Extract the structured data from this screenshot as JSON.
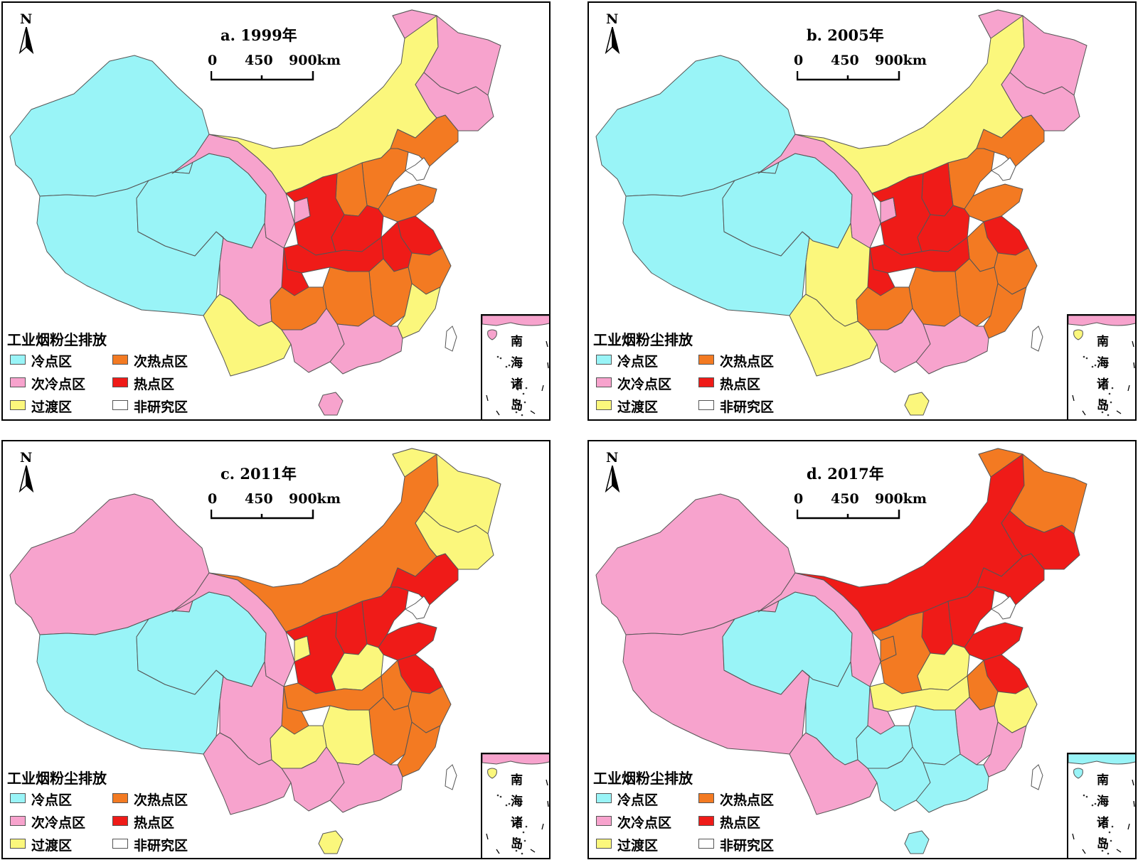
{
  "legend": {
    "title": "工业烟粉尘排放",
    "categories": [
      {
        "label": "冷点区",
        "color": "#99f4f7"
      },
      {
        "label": "次热点区",
        "color": "#f37a22"
      },
      {
        "label": "次冷点区",
        "color": "#f7a3cd"
      },
      {
        "label": "热点区",
        "color": "#ef1b18"
      },
      {
        "label": "过渡区",
        "color": "#fbf77c"
      },
      {
        "label": "非研究区",
        "color": "#ffffff"
      }
    ]
  },
  "north_label": "N",
  "scale": {
    "ticks": [
      "0",
      "450",
      "900km"
    ]
  },
  "inset_label": [
    "南",
    "海",
    "诸",
    "岛"
  ],
  "panels": [
    {
      "title": "a. 1999年",
      "regions": {
        "xinjiang": "冷点区",
        "tibet": "冷点区",
        "qinghai": "冷点区",
        "gansu": "次冷点区",
        "sichuan": "次冷点区",
        "heilongjiang": "次冷点区",
        "jilin": "次冷点区",
        "guangxi": "次冷点区",
        "guangdong": "次冷点区",
        "hainan": "次冷点区",
        "ningxia": "次冷点区",
        "inner_mongolia": "过渡区",
        "yunnan": "过渡区",
        "fujian": "过渡区",
        "liaoning": "次热点区",
        "beijing_tianjin_hebei": "次热点区",
        "shandong": "次热点区",
        "hunan": "次热点区",
        "jiangxi": "次热点区",
        "guizhou": "次热点区",
        "zhejiang": "次热点区",
        "shanxi": "次热点区",
        "shaanxi": "热点区",
        "henan": "热点区",
        "hubei": "热点区",
        "anhui": "热点区",
        "jiangsu": "热点区",
        "chongqing": "热点区"
      }
    },
    {
      "title": "b. 2005年",
      "regions": {
        "xinjiang": "冷点区",
        "tibet": "冷点区",
        "qinghai": "冷点区",
        "gansu": "次冷点区",
        "heilongjiang": "次冷点区",
        "jilin": "次冷点区",
        "guangxi": "次冷点区",
        "guangdong": "次冷点区",
        "ningxia": "次冷点区",
        "inner_mongolia": "过渡区",
        "yunnan": "过渡区",
        "sichuan": "过渡区",
        "hainan": "过渡区",
        "liaoning": "次热点区",
        "beijing_tianjin_hebei": "次热点区",
        "shandong": "次热点区",
        "hunan": "次热点区",
        "jiangxi": "次热点区",
        "guizhou": "次热点区",
        "zhejiang": "次热点区",
        "fujian": "次热点区",
        "anhui": "次热点区",
        "shaanxi": "热点区",
        "henan": "热点区",
        "hubei": "热点区",
        "jiangsu": "热点区",
        "chongqing": "热点区",
        "shanxi": "热点区"
      }
    },
    {
      "title": "c. 2011年",
      "regions": {
        "tibet": "冷点区",
        "qinghai": "冷点区",
        "xinjiang": "次冷点区",
        "gansu": "次冷点区",
        "sichuan": "次冷点区",
        "yunnan": "次冷点区",
        "guangxi": "次冷点区",
        "guangdong": "次冷点区",
        "heilongjiang": "过渡区",
        "jilin": "过渡区",
        "guizhou": "过渡区",
        "hunan": "过渡区",
        "henan": "过渡区",
        "hainan": "过渡区",
        "ningxia": "过渡区",
        "inner_mongolia": "次热点区",
        "jiangxi": "次热点区",
        "fujian": "次热点区",
        "zhejiang": "次热点区",
        "anhui": "次热点区",
        "hubei": "次热点区",
        "chongqing": "次热点区",
        "liaoning": "热点区",
        "beijing_tianjin_hebei": "热点区",
        "shandong": "热点区",
        "shaanxi": "热点区",
        "shanxi": "热点区",
        "jiangsu": "热点区"
      }
    },
    {
      "title": "d. 2017年",
      "regions": {
        "qinghai": "冷点区",
        "sichuan": "冷点区",
        "guizhou": "冷点区",
        "hunan": "冷点区",
        "guangxi": "冷点区",
        "guangdong": "冷点区",
        "hainan": "冷点区",
        "xinjiang": "次冷点区",
        "tibet": "次冷点区",
        "gansu": "次冷点区",
        "yunnan": "次冷点区",
        "jiangxi": "次冷点区",
        "fujian": "次冷点区",
        "chongqing": "次冷点区",
        "henan": "过渡区",
        "hubei": "过渡区",
        "zhejiang": "过渡区",
        "heilongjiang": "次热点区",
        "anhui": "次热点区",
        "shaanxi": "次热点区",
        "ningxia": "次热点区",
        "inner_mongolia": "热点区",
        "jilin": "热点区",
        "liaoning": "热点区",
        "beijing_tianjin_hebei": "热点区",
        "shandong": "热点区",
        "shanxi": "热点区",
        "jiangsu": "热点区"
      }
    }
  ]
}
